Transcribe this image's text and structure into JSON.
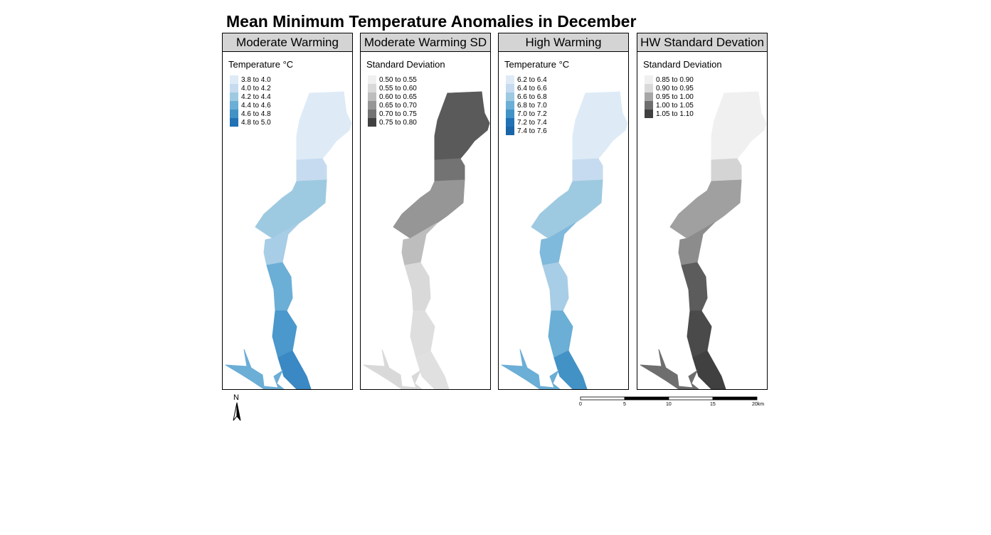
{
  "title": "Mean Minimum Temperature Anomalies in December",
  "panels": [
    {
      "header": "Moderate Warming",
      "legend_title": "Temperature °C",
      "legend": [
        {
          "label": "3.8 to 4.0",
          "color": "#deebf7"
        },
        {
          "label": "4.0 to 4.2",
          "color": "#c6dbef"
        },
        {
          "label": "4.2 to 4.4",
          "color": "#9ecae1"
        },
        {
          "label": "4.4 to 4.6",
          "color": "#6baed6"
        },
        {
          "label": "4.6 to 4.8",
          "color": "#4292c6"
        },
        {
          "label": "4.8 to 5.0",
          "color": "#2171b5"
        }
      ],
      "zones": [
        "#deebf7",
        "#c6dbef",
        "#9ecae1",
        "#a8cde6",
        "#6baed6",
        "#4a98cc",
        "#3a88c4",
        "#6baed6"
      ]
    },
    {
      "header": "Moderate Warming SD",
      "legend_title": "Standard Deviation",
      "legend": [
        {
          "label": "0.50 to 0.55",
          "color": "#f0f0f0"
        },
        {
          "label": "0.55 to 0.60",
          "color": "#d9d9d9"
        },
        {
          "label": "0.60 to 0.65",
          "color": "#bdbdbd"
        },
        {
          "label": "0.65 to 0.70",
          "color": "#969696"
        },
        {
          "label": "0.70 to 0.75",
          "color": "#737373"
        },
        {
          "label": "0.75 to 0.80",
          "color": "#404040"
        }
      ],
      "zones": [
        "#5a5a5a",
        "#737373",
        "#969696",
        "#bdbdbd",
        "#d9d9d9",
        "#dedede",
        "#e0e0e0",
        "#d9d9d9"
      ]
    },
    {
      "header": "High Warming",
      "legend_title": "Temperature °C",
      "legend": [
        {
          "label": "6.2 to 6.4",
          "color": "#deebf7"
        },
        {
          "label": "6.4 to 6.6",
          "color": "#c6dbef"
        },
        {
          "label": "6.6 to 6.8",
          "color": "#9ecae1"
        },
        {
          "label": "6.8 to 7.0",
          "color": "#6baed6"
        },
        {
          "label": "7.0 to 7.2",
          "color": "#4292c6"
        },
        {
          "label": "7.2 to 7.4",
          "color": "#2171b5"
        },
        {
          "label": "7.4 to 7.6",
          "color": "#1a65a8"
        }
      ],
      "zones": [
        "#deebf7",
        "#c6dbef",
        "#9ecae1",
        "#7fb9dc",
        "#a8cde6",
        "#6baed6",
        "#4292c6",
        "#6baed6"
      ]
    },
    {
      "header": "HW Standard Devation",
      "legend_title": "Standard Deviation",
      "legend": [
        {
          "label": "0.85 to 0.90",
          "color": "#f0f0f0"
        },
        {
          "label": "0.90 to 0.95",
          "color": "#d9d9d9"
        },
        {
          "label": "0.95 to 1.00",
          "color": "#a6a6a6"
        },
        {
          "label": "1.00 to 1.05",
          "color": "#6e6e6e"
        },
        {
          "label": "1.05 to 1.10",
          "color": "#404040"
        }
      ],
      "zones": [
        "#f0f0f0",
        "#d4d4d4",
        "#a0a0a0",
        "#8c8c8c",
        "#5c5c5c",
        "#4a4a4a",
        "#404040",
        "#6e6e6e"
      ]
    }
  ],
  "north_label": "N",
  "scale": {
    "labels": [
      "0",
      "5",
      "10",
      "15",
      "20km"
    ]
  }
}
